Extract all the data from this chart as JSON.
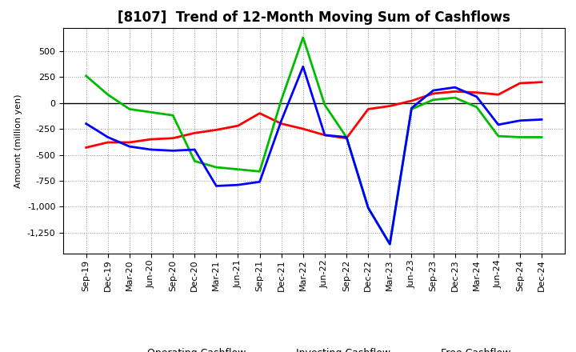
{
  "title": "[8107]  Trend of 12-Month Moving Sum of Cashflows",
  "ylabel": "Amount (million yen)",
  "x_labels": [
    "Sep-19",
    "Dec-19",
    "Mar-20",
    "Jun-20",
    "Sep-20",
    "Dec-20",
    "Mar-21",
    "Jun-21",
    "Sep-21",
    "Dec-21",
    "Mar-22",
    "Jun-22",
    "Sep-22",
    "Dec-22",
    "Mar-23",
    "Jun-23",
    "Sep-23",
    "Dec-23",
    "Mar-24",
    "Jun-24",
    "Sep-24",
    "Dec-24"
  ],
  "operating": [
    -430,
    -380,
    -380,
    -350,
    -340,
    -290,
    -260,
    -220,
    -100,
    -200,
    -250,
    -310,
    -340,
    -60,
    -30,
    20,
    90,
    110,
    100,
    80,
    190,
    200
  ],
  "investing": [
    260,
    80,
    -60,
    -90,
    -120,
    -560,
    -620,
    -640,
    -660,
    30,
    630,
    -20,
    -330,
    -1010,
    -1360,
    -60,
    30,
    50,
    -40,
    -320,
    -330,
    -330
  ],
  "free": [
    -200,
    -330,
    -420,
    -450,
    -460,
    -450,
    -800,
    -790,
    -760,
    -170,
    350,
    -310,
    -330,
    -1010,
    -1360,
    -50,
    120,
    150,
    60,
    -210,
    -170,
    -160
  ],
  "operating_color": "#ff0000",
  "investing_color": "#00bb00",
  "free_color": "#0000ff",
  "background_color": "#ffffff",
  "plot_bg_color": "#ffffff",
  "grid_color": "#999999",
  "ylim": [
    -1450,
    720
  ],
  "yticks": [
    -1250,
    -1000,
    -750,
    -500,
    -250,
    0,
    250,
    500
  ],
  "linewidth": 2.0,
  "title_fontsize": 12,
  "label_fontsize": 8,
  "tick_fontsize": 8,
  "legend_fontsize": 9
}
